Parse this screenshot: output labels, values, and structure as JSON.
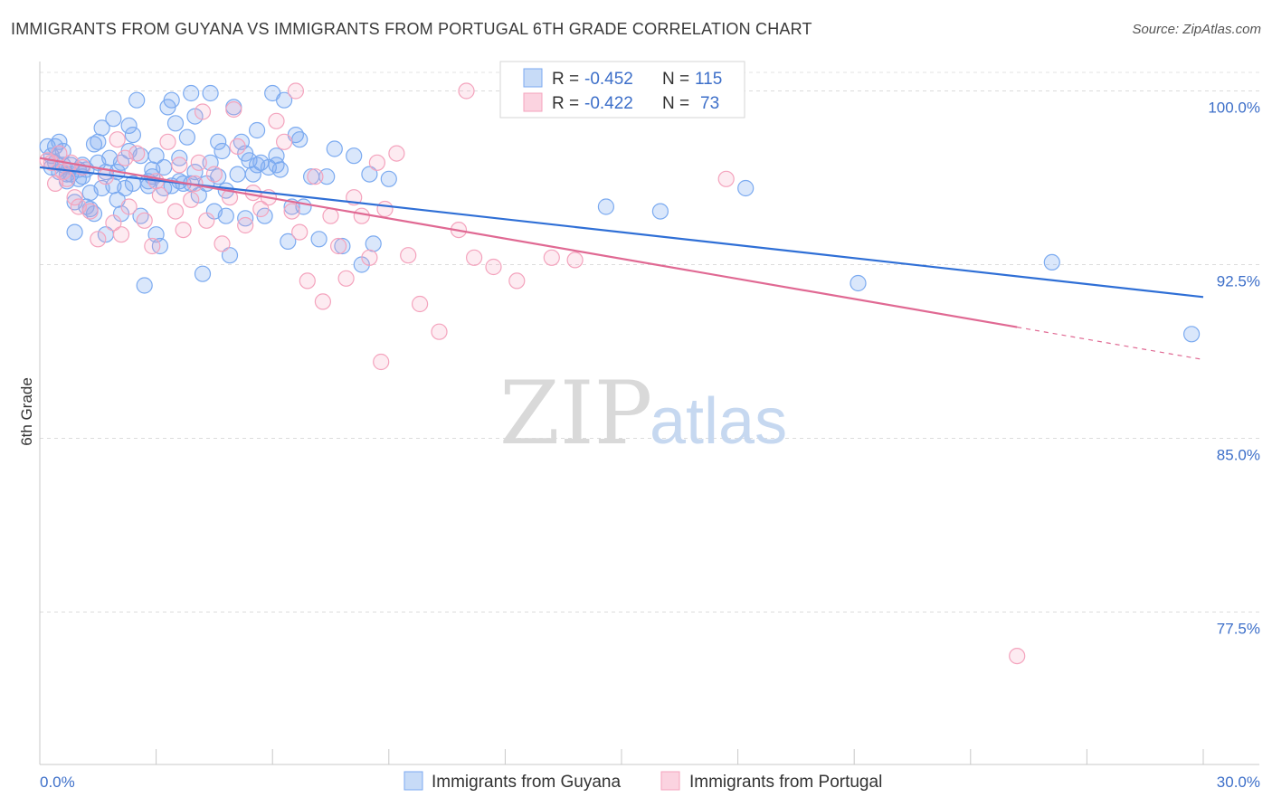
{
  "header": {
    "title": "IMMIGRANTS FROM GUYANA VS IMMIGRANTS FROM PORTUGAL 6TH GRADE CORRELATION CHART",
    "source": "Source: ZipAtlas.com"
  },
  "watermark": {
    "zip": "ZIP",
    "atlas": "atlas"
  },
  "chart_data": {
    "type": "scatter",
    "title": "IMMIGRANTS FROM GUYANA VS IMMIGRANTS FROM PORTUGAL 6TH GRADE CORRELATION CHART",
    "xlabel": "",
    "ylabel": "6th Grade",
    "xlim": [
      0,
      30
    ],
    "ylim": [
      69.5,
      100.8
    ],
    "x_tick_labels": [
      "0.0%",
      "30.0%"
    ],
    "y_ticks": [
      {
        "value": 100.0,
        "label": "100.0%"
      },
      {
        "value": 92.5,
        "label": "92.5%"
      },
      {
        "value": 85.0,
        "label": "85.0%"
      },
      {
        "value": 77.5,
        "label": "77.5%"
      }
    ],
    "grid": true,
    "legend_position": "bottom-center",
    "stats": [
      {
        "r_label": "R =",
        "r": "-0.452",
        "n_label": "N =",
        "n": "115"
      },
      {
        "r_label": "R =",
        "r": "-0.422",
        "n_label": "N =",
        "n": "73"
      }
    ],
    "series": [
      {
        "name": "Immigrants from Guyana",
        "color": "#7baaf0",
        "line_color": "#2f6fd6",
        "trend": {
          "x": [
            0.0,
            30.0
          ],
          "y": [
            96.7,
            91.1
          ]
        },
        "points": [
          [
            0.2,
            97.6
          ],
          [
            0.3,
            97.2
          ],
          [
            0.4,
            96.9
          ],
          [
            0.5,
            96.5
          ],
          [
            0.6,
            97.4
          ],
          [
            0.7,
            96.1
          ],
          [
            0.8,
            96.8
          ],
          [
            0.9,
            95.2
          ],
          [
            0.9,
            93.9
          ],
          [
            1.0,
            96.6
          ],
          [
            1.1,
            96.3
          ],
          [
            1.2,
            95.0
          ],
          [
            1.3,
            95.6
          ],
          [
            1.4,
            94.7
          ],
          [
            1.5,
            96.9
          ],
          [
            1.5,
            97.8
          ],
          [
            1.6,
            95.8
          ],
          [
            1.7,
            93.8
          ],
          [
            1.8,
            97.1
          ],
          [
            1.9,
            98.8
          ],
          [
            2.0,
            96.5
          ],
          [
            2.1,
            94.7
          ],
          [
            2.2,
            95.8
          ],
          [
            2.3,
            97.4
          ],
          [
            2.4,
            98.1
          ],
          [
            2.5,
            99.6
          ],
          [
            2.6,
            94.6
          ],
          [
            2.7,
            91.6
          ],
          [
            2.8,
            95.9
          ],
          [
            2.9,
            96.3
          ],
          [
            3.0,
            97.2
          ],
          [
            3.1,
            93.3
          ],
          [
            3.2,
            95.8
          ],
          [
            3.3,
            99.3
          ],
          [
            3.4,
            99.6
          ],
          [
            3.5,
            98.6
          ],
          [
            3.6,
            97.1
          ],
          [
            3.7,
            96.0
          ],
          [
            3.8,
            98.0
          ],
          [
            3.9,
            99.9
          ],
          [
            4.0,
            96.5
          ],
          [
            4.1,
            95.5
          ],
          [
            4.2,
            92.1
          ],
          [
            4.3,
            96.0
          ],
          [
            4.4,
            99.9
          ],
          [
            4.5,
            94.8
          ],
          [
            4.6,
            96.3
          ],
          [
            4.7,
            97.4
          ],
          [
            4.8,
            94.6
          ],
          [
            4.9,
            92.9
          ],
          [
            5.0,
            99.3
          ],
          [
            5.1,
            96.4
          ],
          [
            5.2,
            97.8
          ],
          [
            5.3,
            94.5
          ],
          [
            5.4,
            97.0
          ],
          [
            5.5,
            96.4
          ],
          [
            5.6,
            98.3
          ],
          [
            5.7,
            96.9
          ],
          [
            5.8,
            94.6
          ],
          [
            5.9,
            96.7
          ],
          [
            6.0,
            99.9
          ],
          [
            6.1,
            97.2
          ],
          [
            6.2,
            96.6
          ],
          [
            6.3,
            99.6
          ],
          [
            6.4,
            93.5
          ],
          [
            6.5,
            95.0
          ],
          [
            6.6,
            98.1
          ],
          [
            6.7,
            97.9
          ],
          [
            6.8,
            95.0
          ],
          [
            7.2,
            93.6
          ],
          [
            7.4,
            96.3
          ],
          [
            7.6,
            97.5
          ],
          [
            7.8,
            93.3
          ],
          [
            8.1,
            97.2
          ],
          [
            8.3,
            92.5
          ],
          [
            8.5,
            96.4
          ],
          [
            0.3,
            96.7
          ],
          [
            0.5,
            97.8
          ],
          [
            0.7,
            96.4
          ],
          [
            1.1,
            96.8
          ],
          [
            1.3,
            94.9
          ],
          [
            1.6,
            98.4
          ],
          [
            1.9,
            95.9
          ],
          [
            2.1,
            96.9
          ],
          [
            2.3,
            98.5
          ],
          [
            2.6,
            97.2
          ],
          [
            2.8,
            96.1
          ],
          [
            3.0,
            93.8
          ],
          [
            3.2,
            96.7
          ],
          [
            3.6,
            96.1
          ],
          [
            4.0,
            98.9
          ],
          [
            4.4,
            96.9
          ],
          [
            4.8,
            95.7
          ],
          [
            5.3,
            97.3
          ],
          [
            6.1,
            96.8
          ],
          [
            7.0,
            96.3
          ],
          [
            0.4,
            97.6
          ],
          [
            0.6,
            96.8
          ],
          [
            0.8,
            96.4
          ],
          [
            1.0,
            96.2
          ],
          [
            1.2,
            96.6
          ],
          [
            1.4,
            97.7
          ],
          [
            1.7,
            96.5
          ],
          [
            2.0,
            95.3
          ],
          [
            2.4,
            96.0
          ],
          [
            2.9,
            96.6
          ],
          [
            3.4,
            95.9
          ],
          [
            3.9,
            96.0
          ],
          [
            4.6,
            97.8
          ],
          [
            5.6,
            96.8
          ],
          [
            14.6,
            95.0
          ],
          [
            16.0,
            94.8
          ],
          [
            18.2,
            95.8
          ],
          [
            21.1,
            91.7
          ],
          [
            26.1,
            92.6
          ],
          [
            29.7,
            89.5
          ],
          [
            8.6,
            93.4
          ],
          [
            9.0,
            96.2
          ]
        ]
      },
      {
        "name": "Immigrants from Portugal",
        "color": "#f4a3bd",
        "line_color": "#e06993",
        "trend": {
          "x": [
            0.0,
            25.2
          ],
          "y": [
            97.1,
            89.8
          ]
        },
        "trend_dashed": {
          "x": [
            25.2,
            30.0
          ],
          "y": [
            89.8,
            88.4
          ]
        },
        "points": [
          [
            0.3,
            96.9
          ],
          [
            0.5,
            97.3
          ],
          [
            0.7,
            96.2
          ],
          [
            0.9,
            95.4
          ],
          [
            1.1,
            96.7
          ],
          [
            1.3,
            94.8
          ],
          [
            1.5,
            93.6
          ],
          [
            1.7,
            96.3
          ],
          [
            1.9,
            94.3
          ],
          [
            2.1,
            93.8
          ],
          [
            2.3,
            95.0
          ],
          [
            2.5,
            97.3
          ],
          [
            2.7,
            94.4
          ],
          [
            2.9,
            93.3
          ],
          [
            3.1,
            95.5
          ],
          [
            3.3,
            97.8
          ],
          [
            3.5,
            94.8
          ],
          [
            3.7,
            94.0
          ],
          [
            3.9,
            95.3
          ],
          [
            4.1,
            96.9
          ],
          [
            4.3,
            94.4
          ],
          [
            4.5,
            96.4
          ],
          [
            4.7,
            93.4
          ],
          [
            4.9,
            95.4
          ],
          [
            5.1,
            97.6
          ],
          [
            5.3,
            94.2
          ],
          [
            5.5,
            95.6
          ],
          [
            5.7,
            94.9
          ],
          [
            5.9,
            95.4
          ],
          [
            6.1,
            98.7
          ],
          [
            6.3,
            97.8
          ],
          [
            6.5,
            94.8
          ],
          [
            6.7,
            93.9
          ],
          [
            6.9,
            91.8
          ],
          [
            7.1,
            96.3
          ],
          [
            7.3,
            90.9
          ],
          [
            7.5,
            94.6
          ],
          [
            7.7,
            93.3
          ],
          [
            7.9,
            91.9
          ],
          [
            8.1,
            95.4
          ],
          [
            8.3,
            94.6
          ],
          [
            8.5,
            92.8
          ],
          [
            8.7,
            96.9
          ],
          [
            8.9,
            94.9
          ],
          [
            9.2,
            97.3
          ],
          [
            9.5,
            92.9
          ],
          [
            9.8,
            90.8
          ],
          [
            10.3,
            89.6
          ],
          [
            10.8,
            94.0
          ],
          [
            11.2,
            92.8
          ],
          [
            11.7,
            92.4
          ],
          [
            12.3,
            91.8
          ],
          [
            13.2,
            92.8
          ],
          [
            13.8,
            92.7
          ],
          [
            17.7,
            96.2
          ],
          [
            25.2,
            75.6
          ],
          [
            2.0,
            97.9
          ],
          [
            3.6,
            96.8
          ],
          [
            4.2,
            99.1
          ],
          [
            5.0,
            99.2
          ],
          [
            6.6,
            100.0
          ],
          [
            8.8,
            88.3
          ],
          [
            11.0,
            100.0
          ],
          [
            14.1,
            100.0
          ],
          [
            16.5,
            100.0
          ],
          [
            0.2,
            97.0
          ],
          [
            0.4,
            96.0
          ],
          [
            0.6,
            96.5
          ],
          [
            0.8,
            96.9
          ],
          [
            1.0,
            95.0
          ],
          [
            2.2,
            97.1
          ],
          [
            3.0,
            96.1
          ],
          [
            4.0,
            96.0
          ]
        ]
      }
    ]
  },
  "legend": {
    "items": [
      {
        "label": "Immigrants from Guyana",
        "color": "#7baaf0"
      },
      {
        "label": "Immigrants from Portugal",
        "color": "#f4a3bd"
      }
    ]
  }
}
